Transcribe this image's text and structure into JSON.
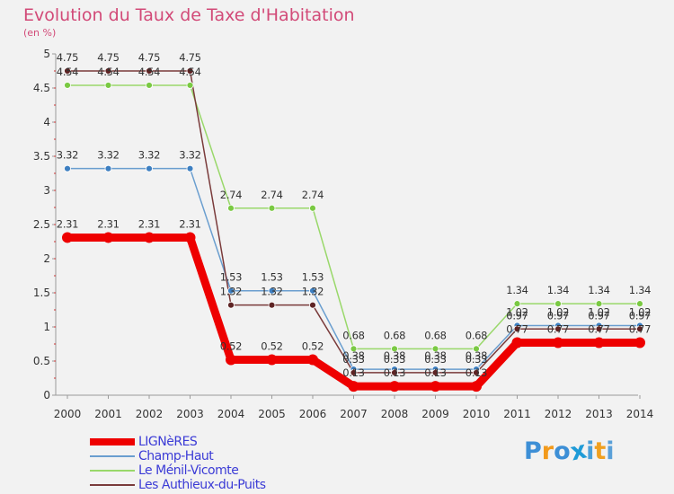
{
  "title": "Evolution du Taux de Taxe d'Habitation",
  "subtitle": "(en %)",
  "chart_data": {
    "type": "line",
    "title": "Evolution du Taux de Taxe d'Habitation",
    "ylabel": "(en %)",
    "xlabel": "",
    "categories": [
      "2000",
      "2001",
      "2002",
      "2003",
      "2004",
      "2005",
      "2006",
      "2007",
      "2008",
      "2009",
      "2010",
      "2011",
      "2012",
      "2013",
      "2014"
    ],
    "ylim": [
      0,
      5
    ],
    "yticks": [
      {
        "value": 0,
        "label": "0"
      },
      {
        "value": 0.5,
        "label": "0.5"
      },
      {
        "value": 1,
        "label": "1"
      },
      {
        "value": 1.5,
        "label": "1.5"
      },
      {
        "value": 2,
        "label": "2"
      },
      {
        "value": 2.5,
        "label": "2.5"
      },
      {
        "value": 3,
        "label": "3"
      },
      {
        "value": 3.5,
        "label": "3.5"
      },
      {
        "value": 4,
        "label": "4"
      },
      {
        "value": 4.5,
        "label": "4.5"
      },
      {
        "value": 5,
        "label": "5"
      }
    ],
    "series": [
      {
        "name": "Champ-Haut",
        "color": "#6a9ecf",
        "marker": "#3d7fc1",
        "values": [
          3.32,
          3.32,
          3.32,
          3.32,
          1.53,
          1.53,
          1.53,
          0.38,
          0.38,
          0.38,
          0.38,
          1.02,
          1.02,
          1.02,
          1.02
        ],
        "labels": [
          "3.32",
          "3.32",
          "3.32",
          "3.32",
          "1.53",
          "1.53",
          "1.53",
          "0.38",
          "0.38",
          "0.38",
          "0.38",
          "1.02",
          "1.02",
          "1.02",
          "1.02"
        ]
      },
      {
        "name": "Le Ménil-Vicomte",
        "color": "#99d86a",
        "marker": "#7ac943",
        "values": [
          4.54,
          4.54,
          4.54,
          4.54,
          2.74,
          2.74,
          2.74,
          0.68,
          0.68,
          0.68,
          0.68,
          1.34,
          1.34,
          1.34,
          1.34
        ],
        "labels": [
          "4.54",
          "4.54",
          "4.54",
          "4.54",
          "2.74",
          "2.74",
          "2.74",
          "0.68",
          "0.68",
          "0.68",
          "0.68",
          "1.34",
          "1.34",
          "1.34",
          "1.34"
        ]
      },
      {
        "name": "Les Authieux-du-Puits",
        "color": "#7a3b3b",
        "marker": "#5e2424",
        "values": [
          4.75,
          4.75,
          4.75,
          4.75,
          1.32,
          1.32,
          1.32,
          0.33,
          0.33,
          0.33,
          0.33,
          0.97,
          0.97,
          0.97,
          0.97
        ],
        "labels": [
          "4.75",
          "4.75",
          "4.75",
          "4.75",
          "1.32",
          "1.32",
          "1.32",
          "0.33",
          "0.33",
          "0.33",
          "0.33",
          "0.97",
          "0.97",
          "0.97",
          "0.97"
        ]
      },
      {
        "name": "LIGNèRES",
        "color": "#ee0000",
        "marker": "#ee0000",
        "thick": true,
        "values": [
          2.31,
          2.31,
          2.31,
          2.31,
          0.52,
          0.52,
          0.52,
          0.13,
          0.13,
          0.13,
          0.13,
          0.77,
          0.77,
          0.77,
          0.77
        ],
        "labels": [
          "2.31",
          "2.31",
          "2.31",
          "2.31",
          "0.52",
          "0.52",
          "0.52",
          "0.13",
          "0.13",
          "0.13",
          "0.13",
          "0.77",
          "0.77",
          "0.77",
          "0.77"
        ]
      }
    ],
    "legend": [
      {
        "name": "LIGNèRES",
        "color": "#ee0000",
        "thick": true
      },
      {
        "name": "Champ-Haut",
        "color": "#6a9ecf",
        "thick": false
      },
      {
        "name": "Le Ménil-Vicomte",
        "color": "#99d86a",
        "thick": false
      },
      {
        "name": "Les Authieux-du-Puits",
        "color": "#7a3b3b",
        "thick": false
      }
    ],
    "legend_position": "bottom-left",
    "grid": false
  },
  "logo": {
    "letters": [
      "P",
      "r",
      "o",
      "x",
      "i",
      "t",
      "i"
    ],
    "colors": [
      "#3d8fd6",
      "#f29a1c",
      "#3d8fd6",
      "#1f9bd7",
      "#4a9fd8",
      "#f0a020",
      "#5aa0d8"
    ]
  }
}
